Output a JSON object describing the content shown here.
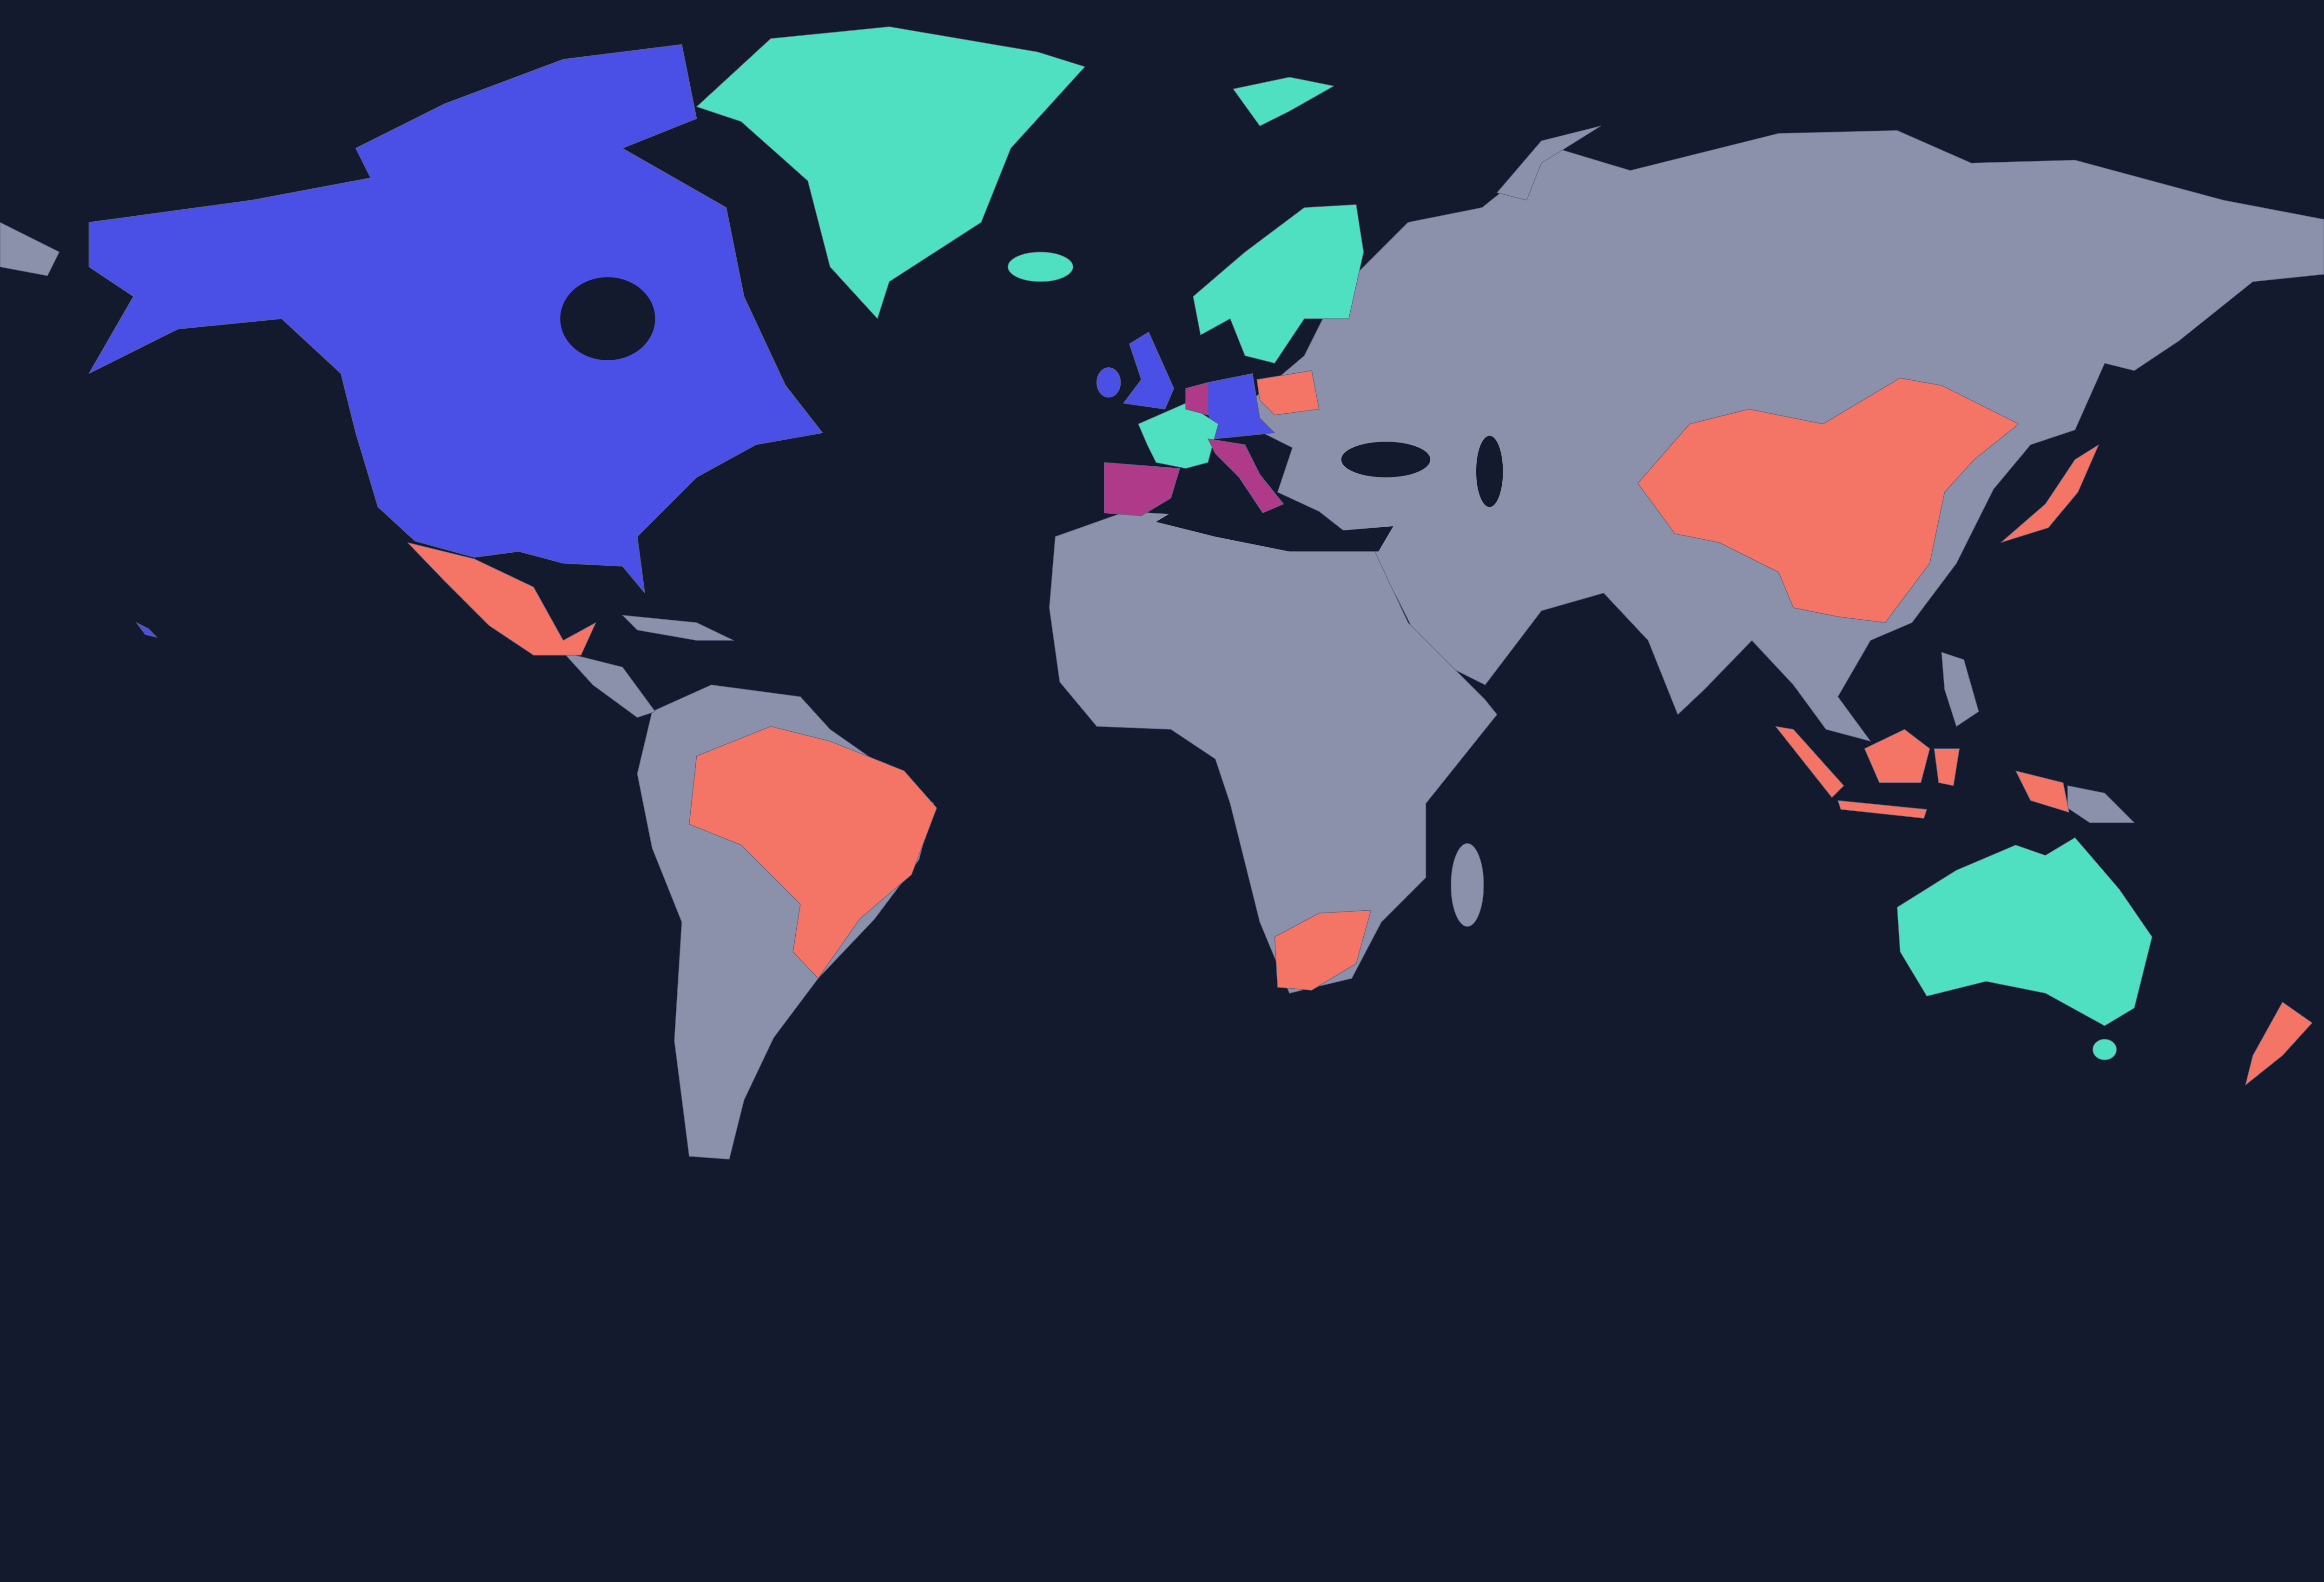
{
  "map": {
    "colors": {
      "ocean": "#131a2e",
      "default_land": "#8b90ab",
      "blue": "#4a4fe6",
      "teal": "#4fdfc1",
      "coral": "#f47465",
      "magenta": "#b03a8a"
    },
    "highlight_groups": [
      {
        "color_key": "blue",
        "regions": [
          "united-states",
          "canada",
          "united-kingdom",
          "ireland",
          "germany",
          "austria"
        ]
      },
      {
        "color_key": "teal",
        "regions": [
          "greenland",
          "iceland",
          "svalbard",
          "norway",
          "sweden",
          "finland",
          "france",
          "australia"
        ]
      },
      {
        "color_key": "magenta",
        "regions": [
          "spain",
          "portugal",
          "italy",
          "netherlands",
          "belgium"
        ]
      },
      {
        "color_key": "coral",
        "regions": [
          "mexico",
          "brazil",
          "poland",
          "china",
          "japan",
          "indonesia",
          "malaysia",
          "south-africa",
          "new-zealand"
        ]
      }
    ]
  }
}
